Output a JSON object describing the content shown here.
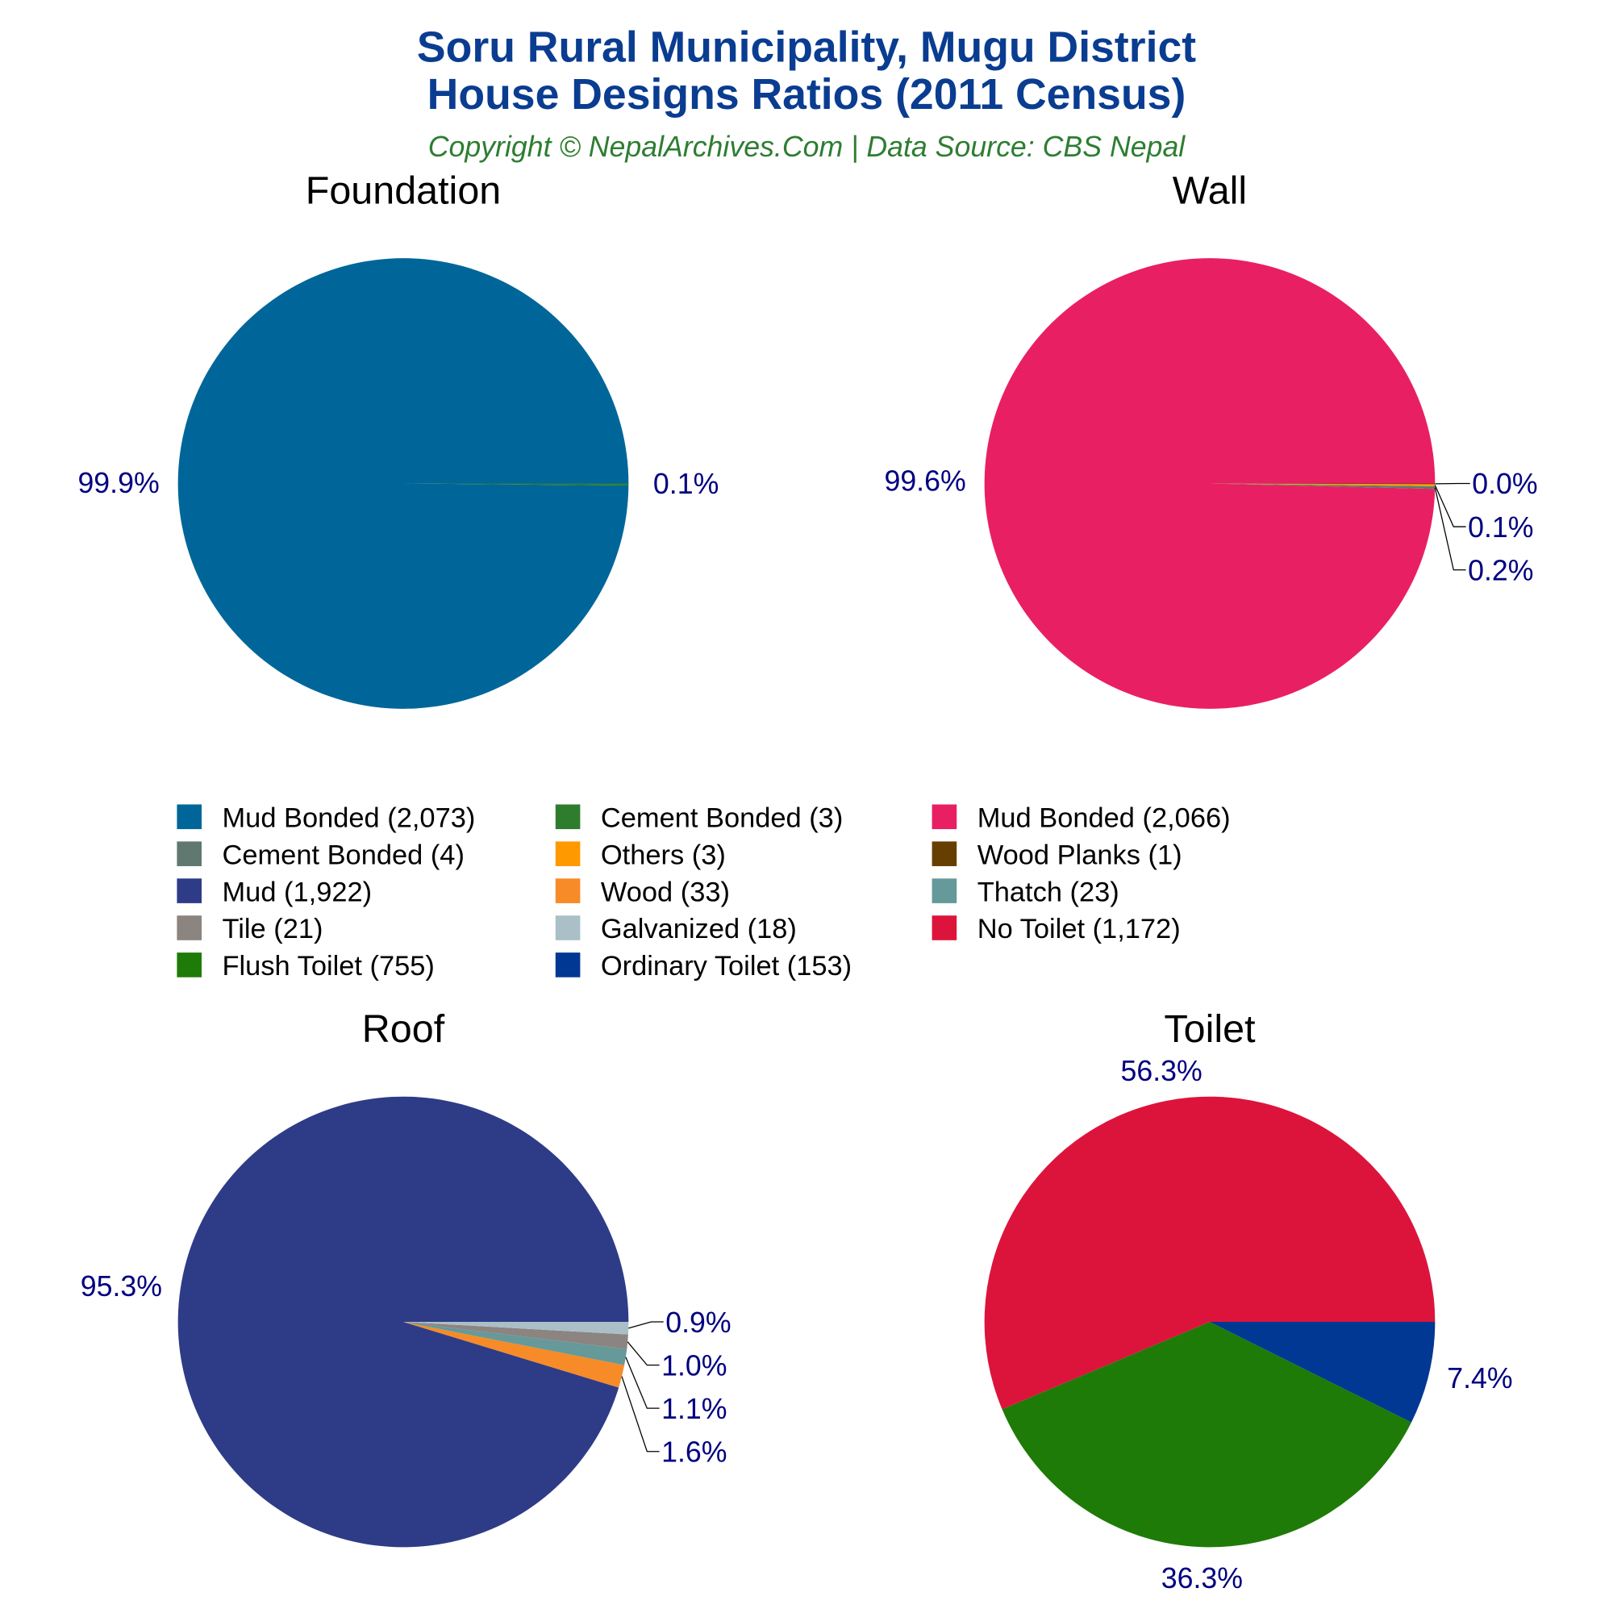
{
  "title_line1": "Soru Rural Municipality, Mugu District",
  "title_line2": "House Designs Ratios (2011 Census)",
  "subtitle": "Copyright © NepalArchives.Com | Data Source: CBS Nepal",
  "colors": {
    "title": "#0A3D91",
    "subtitle": "#2E7D32",
    "labels": "#000080"
  },
  "chart_data": [
    {
      "type": "pie",
      "title": "Foundation",
      "slices": [
        {
          "name": "Mud Bonded",
          "value": 2073,
          "label": "99.9%",
          "color": "#006699"
        },
        {
          "name": "Cement Bonded",
          "value": 3,
          "label": "0.1%",
          "color": "#2E7D2E"
        }
      ]
    },
    {
      "type": "pie",
      "title": "Wall",
      "slices": [
        {
          "name": "Mud Bonded",
          "value": 2066,
          "label": "99.6%",
          "color": "#E91F63"
        },
        {
          "name": "Cement Bonded",
          "value": 4,
          "label": "0.2%",
          "color": "#607870"
        },
        {
          "name": "Others",
          "value": 3,
          "label": "0.1%",
          "color": "#FF9900"
        },
        {
          "name": "Wood Planks",
          "value": 1,
          "label": "0.0%",
          "color": "#663F00"
        }
      ]
    },
    {
      "type": "pie",
      "title": "Roof",
      "slices": [
        {
          "name": "Mud",
          "value": 1922,
          "label": "95.3%",
          "color": "#2E3C87"
        },
        {
          "name": "Wood",
          "value": 33,
          "label": "1.6%",
          "color": "#F68B28"
        },
        {
          "name": "Thatch",
          "value": 23,
          "label": "1.1%",
          "color": "#669999"
        },
        {
          "name": "Tile",
          "value": 21,
          "label": "1.0%",
          "color": "#8C8480"
        },
        {
          "name": "Galvanized",
          "value": 18,
          "label": "0.9%",
          "color": "#AABFC7"
        }
      ]
    },
    {
      "type": "pie",
      "title": "Toilet",
      "slices": [
        {
          "name": "No Toilet",
          "value": 1172,
          "label": "56.3%",
          "color": "#DC143C"
        },
        {
          "name": "Flush Toilet",
          "value": 755,
          "label": "36.3%",
          "color": "#1E7B07"
        },
        {
          "name": "Ordinary Toilet",
          "value": 153,
          "label": "7.4%",
          "color": "#003893"
        }
      ]
    }
  ],
  "legend": [
    {
      "label": "Mud Bonded (2,073)",
      "color": "#006699"
    },
    {
      "label": "Cement Bonded (3)",
      "color": "#2E7D2E"
    },
    {
      "label": "Mud Bonded (2,066)",
      "color": "#E91F63"
    },
    {
      "label": "Cement Bonded (4)",
      "color": "#607870"
    },
    {
      "label": "Others (3)",
      "color": "#FF9900"
    },
    {
      "label": "Wood Planks (1)",
      "color": "#663F00"
    },
    {
      "label": "Mud (1,922)",
      "color": "#2E3C87"
    },
    {
      "label": "Wood (33)",
      "color": "#F68B28"
    },
    {
      "label": "Thatch (23)",
      "color": "#669999"
    },
    {
      "label": "Tile (21)",
      "color": "#8C8480"
    },
    {
      "label": "Galvanized (18)",
      "color": "#AABFC7"
    },
    {
      "label": "No Toilet (1,172)",
      "color": "#DC143C"
    },
    {
      "label": "Flush Toilet (755)",
      "color": "#1E7B07"
    },
    {
      "label": "Ordinary Toilet (153)",
      "color": "#003893"
    }
  ]
}
